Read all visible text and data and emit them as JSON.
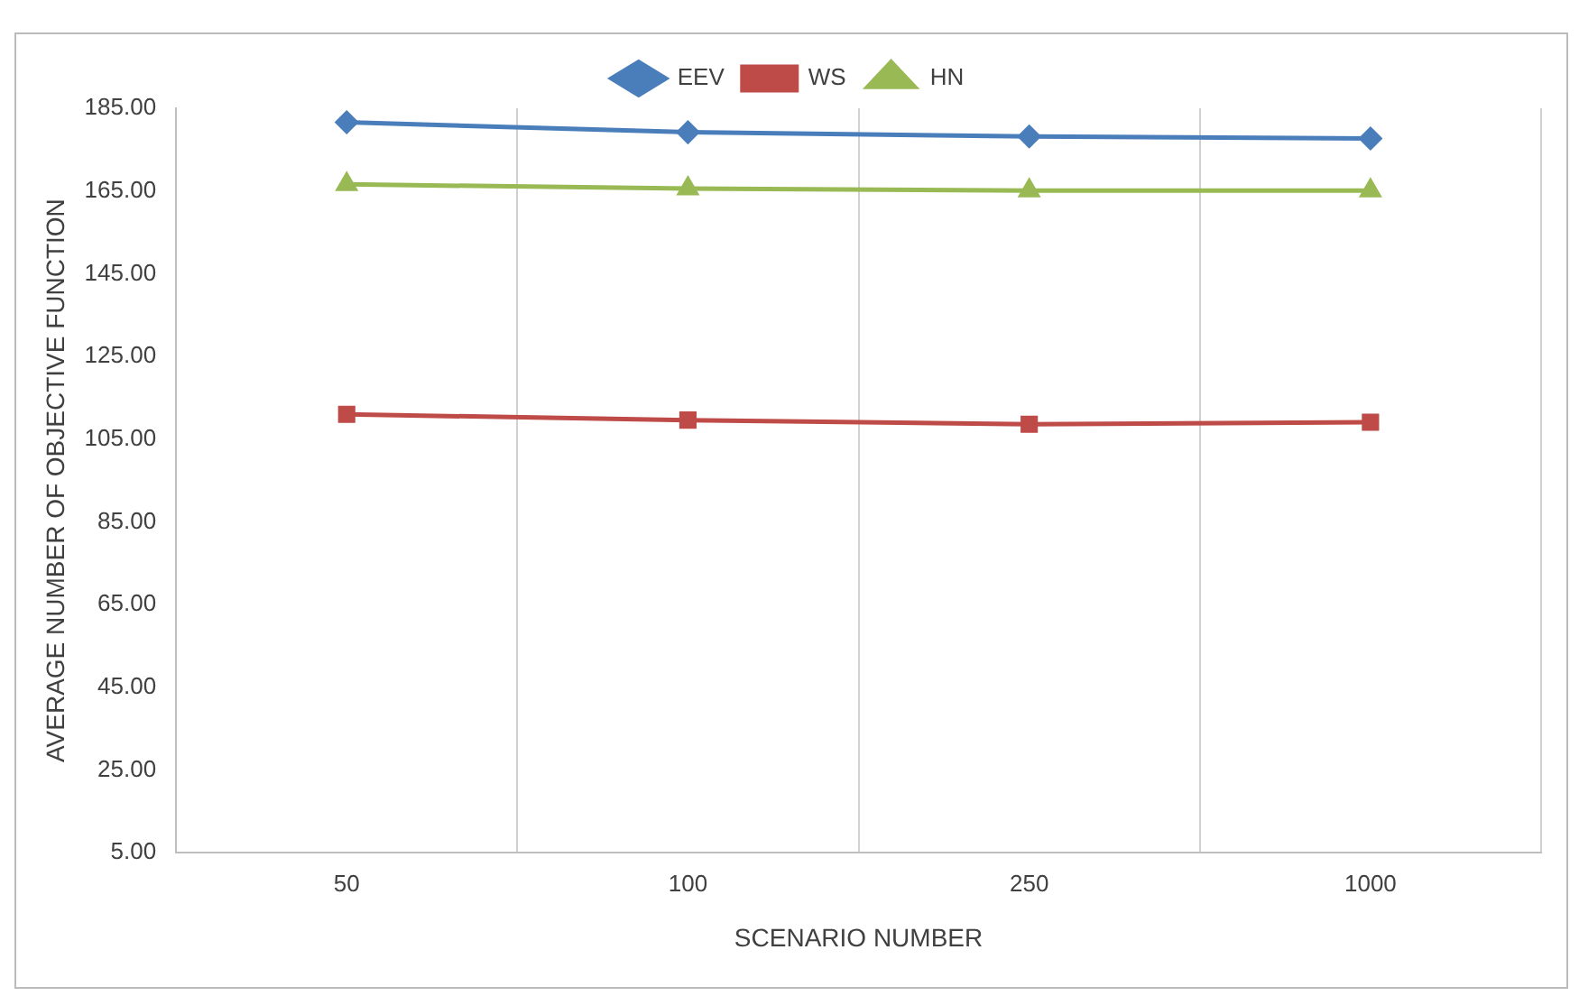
{
  "chart_data": {
    "type": "line",
    "xlabel": "SCENARIO NUMBER",
    "ylabel": "AVERAGE NUMBER OF OBJECTIVE FUNCTION",
    "categories": [
      "50",
      "100",
      "250",
      "1000"
    ],
    "series": [
      {
        "name": "EEV",
        "color": "#4a7ebb",
        "marker": "diamond",
        "values": [
          181.6,
          179.2,
          178.2,
          177.7
        ]
      },
      {
        "name": "WS",
        "color": "#be4b48",
        "marker": "square",
        "values": [
          111.0,
          109.6,
          108.6,
          109.1
        ]
      },
      {
        "name": "HN",
        "color": "#98b954",
        "marker": "triangle",
        "values": [
          166.6,
          165.6,
          165.1,
          165.1
        ]
      }
    ],
    "ylim": [
      5,
      185
    ],
    "yticks": [
      {
        "value": 5,
        "label": "5.00"
      },
      {
        "value": 25,
        "label": "25.00"
      },
      {
        "value": 45,
        "label": "45.00"
      },
      {
        "value": 65,
        "label": "65.00"
      },
      {
        "value": 85,
        "label": "85.00"
      },
      {
        "value": 105,
        "label": "105.00"
      },
      {
        "value": 125,
        "label": "125.00"
      },
      {
        "value": 145,
        "label": "145.00"
      },
      {
        "value": 165,
        "label": "165.00"
      },
      {
        "value": 185,
        "label": "185.00"
      }
    ],
    "grid": "x",
    "legend": "top",
    "line_style": "solid"
  }
}
